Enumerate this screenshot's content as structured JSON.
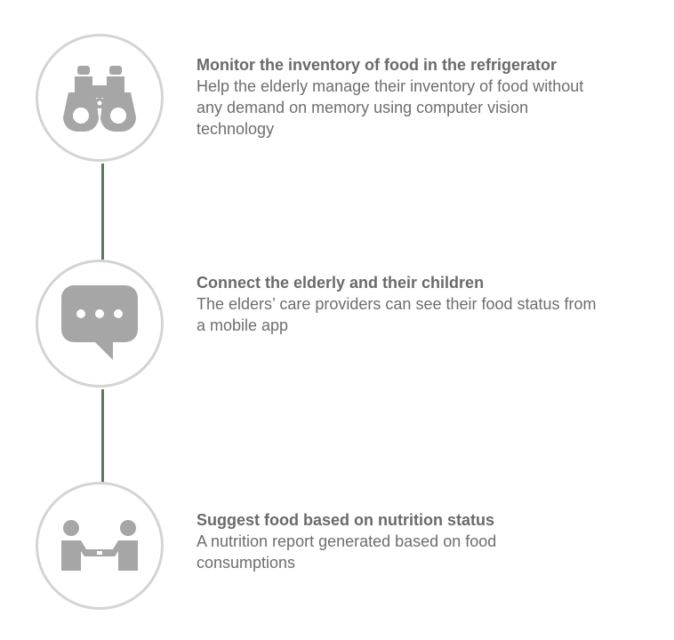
{
  "colors": {
    "icon_gray": "#a6a6a6",
    "circle_border": "#d4d4d4",
    "connector": "#5f7564",
    "text": "#6e6e6e"
  },
  "features": [
    {
      "icon": "binoculars-icon",
      "title": "Monitor the inventory of food in the refrigerator",
      "description": "Help the elderly manage their inventory of food without any demand on memory using computer vision technology"
    },
    {
      "icon": "chat-bubble-icon",
      "title": "Connect the elderly and their children",
      "description": "The elders’ care providers can see their food status from a mobile app"
    },
    {
      "icon": "handshake-icon",
      "title": "Suggest food based on nutrition status",
      "description": "A nutrition report generated based on food consumptions"
    }
  ]
}
